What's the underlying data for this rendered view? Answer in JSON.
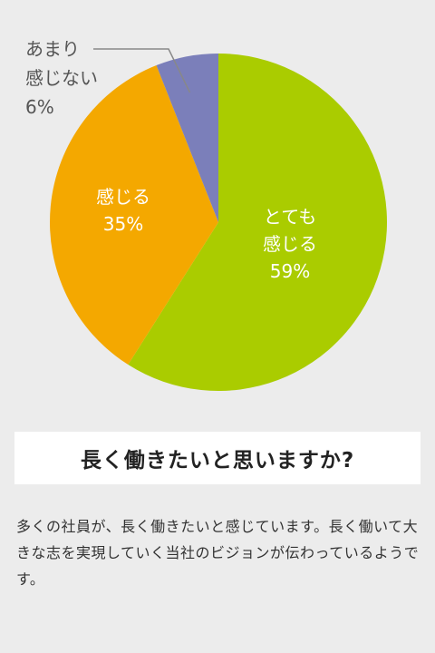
{
  "chart_data": {
    "type": "pie",
    "slices": [
      {
        "label_lines": [
          "とても",
          "感じる"
        ],
        "value": 59,
        "value_text": "59%",
        "color": "#aacc00"
      },
      {
        "label_lines": [
          "感じる"
        ],
        "value": 35,
        "value_text": "35%",
        "color": "#f4a800"
      },
      {
        "label_lines": [
          "あまり",
          "感じない"
        ],
        "value": 6,
        "value_text": "6%",
        "color": "#7b7fba"
      }
    ],
    "start_angle_deg": 0,
    "direction": "clockwise"
  },
  "title": "長く働きたいと思いますか?",
  "description": "多くの社員が、長く働きたいと感じています。長く働いて大きな志を実現していく当社のビジョンが伝わっているようです。",
  "colors": {
    "background": "#ececec",
    "leader_line": "#888888"
  }
}
